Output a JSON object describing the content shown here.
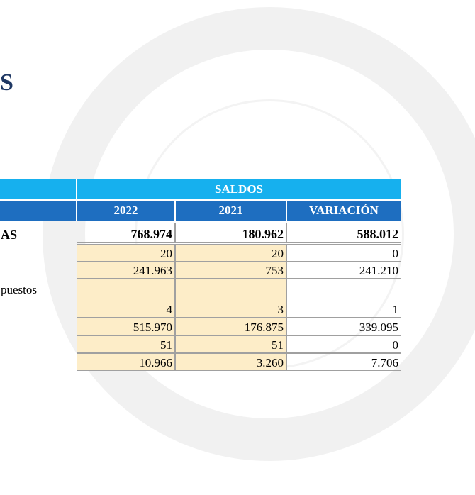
{
  "header": {
    "title": "S"
  },
  "table": {
    "group": "SALDOS",
    "columns": [
      "2022",
      "2021",
      "VARIACIÓN"
    ],
    "rows": [
      {
        "label": "AS",
        "values": [
          "768.974",
          "180.962",
          "588.012"
        ],
        "bold": true
      },
      {
        "values": [
          "20",
          "20",
          "0"
        ]
      },
      {
        "values": [
          "241.963",
          "753",
          "241.210"
        ]
      },
      {
        "label": "puestos",
        "values": [
          "4",
          "3",
          "1"
        ]
      },
      {
        "values": [
          "515.970",
          "176.875",
          "339.095"
        ]
      },
      {
        "values": [
          "51",
          "51",
          "0"
        ]
      },
      {
        "values": [
          "10.966",
          "3.260",
          "7.706"
        ]
      }
    ]
  }
}
